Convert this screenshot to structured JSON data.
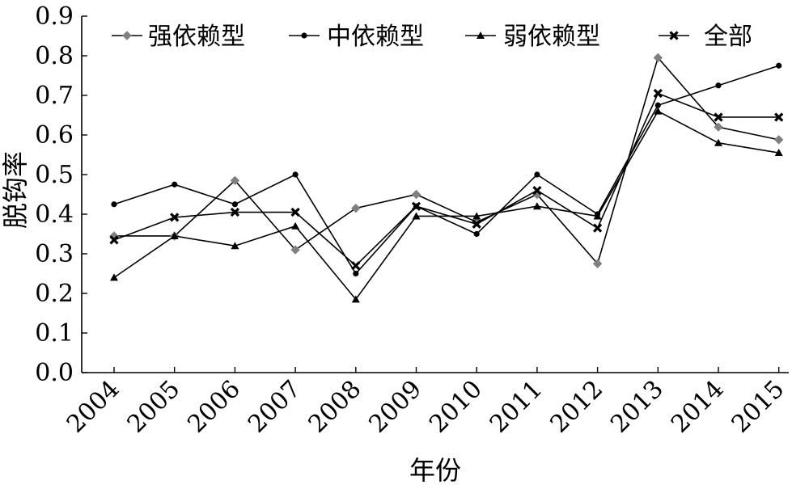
{
  "chart_data": {
    "type": "line",
    "title": "",
    "xlabel": "年份",
    "ylabel": "脱钩率",
    "ylim": [
      0,
      0.9
    ],
    "yticks": [
      "0.0",
      "0.1",
      "0.2",
      "0.3",
      "0.4",
      "0.5",
      "0.6",
      "0.7",
      "0.8",
      "0.9"
    ],
    "categories": [
      "2004",
      "2005",
      "2006",
      "2007",
      "2008",
      "2009",
      "2010",
      "2011",
      "2012",
      "2013",
      "2014",
      "2015"
    ],
    "grid": false,
    "legend_position": "top",
    "series": [
      {
        "name": "强依赖型",
        "marker": "diamond",
        "color": "#808080",
        "values": [
          0.345,
          0.345,
          0.485,
          0.31,
          0.415,
          0.45,
          0.38,
          0.45,
          0.275,
          0.795,
          0.62,
          0.588
        ]
      },
      {
        "name": "中依赖型",
        "marker": "circle",
        "color": "#000000",
        "values": [
          0.425,
          0.475,
          0.425,
          0.5,
          0.25,
          0.42,
          0.35,
          0.5,
          0.4,
          0.675,
          0.725,
          0.775
        ]
      },
      {
        "name": "弱依赖型",
        "marker": "triangle",
        "color": "#000000",
        "values": [
          0.24,
          0.345,
          0.32,
          0.37,
          0.185,
          0.395,
          0.395,
          0.42,
          0.395,
          0.66,
          0.58,
          0.555
        ]
      },
      {
        "name": "全部",
        "marker": "x",
        "color": "#000000",
        "values": [
          0.335,
          0.392,
          0.405,
          0.405,
          0.27,
          0.42,
          0.375,
          0.46,
          0.365,
          0.705,
          0.645,
          0.645
        ]
      }
    ]
  }
}
